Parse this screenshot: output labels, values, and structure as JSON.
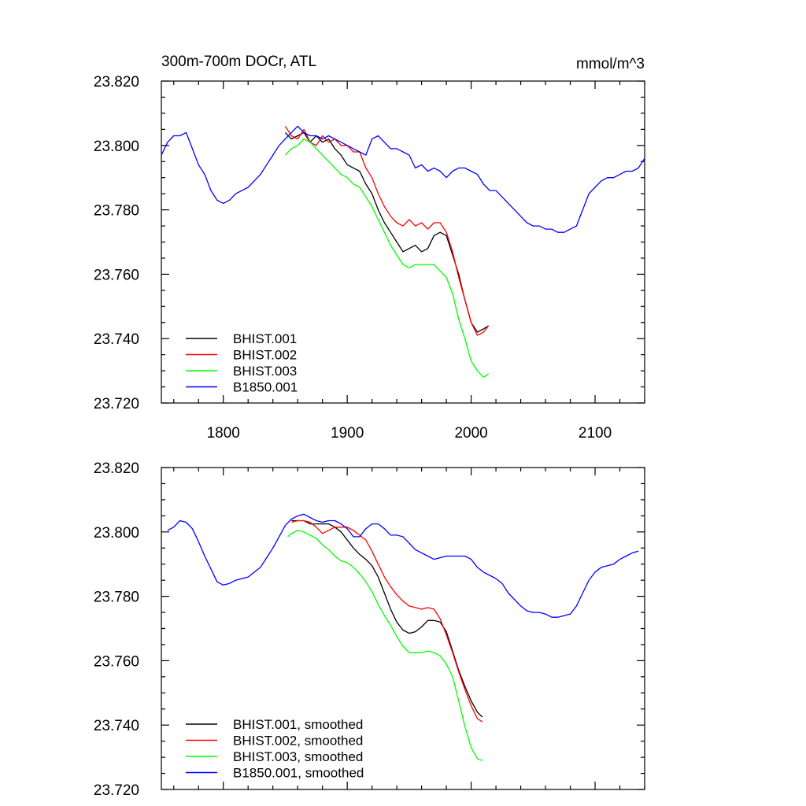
{
  "chart_data": [
    {
      "type": "line",
      "title": "300m-700m DOCr, ATL",
      "units": "mmol/m^3",
      "xlim": [
        1750,
        2140
      ],
      "ylim": [
        23.72,
        23.82
      ],
      "xticks": [
        1800,
        1900,
        2000,
        2100
      ],
      "xtick_labels": [
        "1800",
        "1900",
        "2000",
        "2100"
      ],
      "yticks": [
        23.72,
        23.74,
        23.76,
        23.78,
        23.8,
        23.82
      ],
      "ytick_labels": [
        "23.720",
        "23.740",
        "23.760",
        "23.780",
        "23.800",
        "23.820"
      ],
      "legend_position": "bottom-left",
      "series": [
        {
          "name": "BHIST.001",
          "color": "#000000",
          "x": [
            1850,
            1855,
            1860,
            1865,
            1870,
            1875,
            1880,
            1885,
            1890,
            1895,
            1900,
            1905,
            1910,
            1915,
            1920,
            1925,
            1930,
            1935,
            1940,
            1945,
            1950,
            1955,
            1960,
            1965,
            1970,
            1975,
            1980,
            1985,
            1990,
            1995,
            2000,
            2005,
            2010,
            2014
          ],
          "y": [
            23.804,
            23.802,
            23.803,
            23.804,
            23.801,
            23.803,
            23.801,
            23.802,
            23.799,
            23.797,
            23.794,
            23.793,
            23.792,
            23.788,
            23.785,
            23.78,
            23.776,
            23.773,
            23.77,
            23.767,
            23.768,
            23.769,
            23.767,
            23.768,
            23.772,
            23.773,
            23.772,
            23.766,
            23.76,
            23.752,
            23.745,
            23.742,
            23.743,
            23.744
          ]
        },
        {
          "name": "BHIST.002",
          "color": "#ff0000",
          "x": [
            1850,
            1855,
            1860,
            1865,
            1870,
            1875,
            1880,
            1885,
            1890,
            1895,
            1900,
            1905,
            1910,
            1915,
            1920,
            1925,
            1930,
            1935,
            1940,
            1945,
            1950,
            1955,
            1960,
            1965,
            1970,
            1975,
            1980,
            1985,
            1990,
            1995,
            2000,
            2005,
            2010,
            2014
          ],
          "y": [
            23.806,
            23.803,
            23.802,
            23.805,
            23.801,
            23.8,
            23.803,
            23.801,
            23.802,
            23.8,
            23.8,
            23.798,
            23.798,
            23.793,
            23.79,
            23.785,
            23.781,
            23.778,
            23.776,
            23.775,
            23.777,
            23.775,
            23.776,
            23.774,
            23.776,
            23.776,
            23.773,
            23.767,
            23.759,
            23.752,
            23.745,
            23.741,
            23.742,
            23.744
          ]
        },
        {
          "name": "BHIST.003",
          "color": "#00ff00",
          "x": [
            1850,
            1855,
            1860,
            1865,
            1870,
            1875,
            1880,
            1885,
            1890,
            1895,
            1900,
            1905,
            1910,
            1915,
            1920,
            1925,
            1930,
            1935,
            1940,
            1945,
            1950,
            1955,
            1960,
            1965,
            1970,
            1975,
            1980,
            1985,
            1990,
            1995,
            2000,
            2005,
            2010,
            2014
          ],
          "y": [
            23.797,
            23.799,
            23.8,
            23.802,
            23.801,
            23.799,
            23.797,
            23.795,
            23.793,
            23.791,
            23.79,
            23.788,
            23.787,
            23.784,
            23.781,
            23.777,
            23.773,
            23.769,
            23.766,
            23.763,
            23.762,
            23.763,
            23.763,
            23.763,
            23.763,
            23.761,
            23.759,
            23.754,
            23.746,
            23.74,
            23.733,
            23.73,
            23.728,
            23.729
          ]
        },
        {
          "name": "B1850.001",
          "color": "#0000ff",
          "x": [
            1750,
            1755,
            1760,
            1765,
            1770,
            1775,
            1780,
            1785,
            1790,
            1795,
            1800,
            1805,
            1810,
            1815,
            1820,
            1825,
            1830,
            1835,
            1840,
            1845,
            1850,
            1855,
            1860,
            1865,
            1870,
            1875,
            1880,
            1885,
            1890,
            1895,
            1900,
            1905,
            1910,
            1915,
            1920,
            1925,
            1930,
            1935,
            1940,
            1945,
            1950,
            1955,
            1960,
            1965,
            1970,
            1975,
            1980,
            1985,
            1990,
            1995,
            2000,
            2005,
            2010,
            2015,
            2020,
            2025,
            2030,
            2035,
            2040,
            2045,
            2050,
            2055,
            2060,
            2065,
            2070,
            2075,
            2080,
            2085,
            2090,
            2095,
            2100,
            2105,
            2110,
            2115,
            2120,
            2125,
            2130,
            2135,
            2140
          ],
          "y": [
            23.797,
            23.801,
            23.803,
            23.803,
            23.804,
            23.799,
            23.794,
            23.791,
            23.786,
            23.783,
            23.782,
            23.783,
            23.785,
            23.786,
            23.787,
            23.789,
            23.791,
            23.794,
            23.797,
            23.8,
            23.802,
            23.804,
            23.806,
            23.804,
            23.803,
            23.803,
            23.802,
            23.803,
            23.802,
            23.801,
            23.8,
            23.799,
            23.798,
            23.797,
            23.802,
            23.803,
            23.801,
            23.799,
            23.799,
            23.798,
            23.797,
            23.793,
            23.794,
            23.792,
            23.793,
            23.792,
            23.79,
            23.792,
            23.793,
            23.793,
            23.792,
            23.791,
            23.788,
            23.786,
            23.786,
            23.784,
            23.782,
            23.78,
            23.778,
            23.776,
            23.775,
            23.775,
            23.774,
            23.774,
            23.773,
            23.773,
            23.774,
            23.775,
            23.78,
            23.785,
            23.787,
            23.789,
            23.79,
            23.79,
            23.791,
            23.792,
            23.792,
            23.793,
            23.796
          ]
        }
      ]
    },
    {
      "type": "line",
      "xlim": [
        1750,
        2140
      ],
      "ylim": [
        23.72,
        23.82
      ],
      "xticks": [
        1800,
        1900,
        2000,
        2100
      ],
      "yticks": [
        23.72,
        23.74,
        23.76,
        23.78,
        23.8,
        23.82
      ],
      "ytick_labels": [
        "23.720",
        "23.740",
        "23.760",
        "23.780",
        "23.800",
        "23.820"
      ],
      "legend_position": "bottom-left",
      "series": [
        {
          "name": "BHIST.001, smoothed",
          "color": "#000000",
          "x": [
            1855,
            1860,
            1865,
            1870,
            1875,
            1880,
            1885,
            1890,
            1895,
            1900,
            1905,
            1910,
            1915,
            1920,
            1925,
            1930,
            1935,
            1940,
            1945,
            1950,
            1955,
            1960,
            1965,
            1970,
            1975,
            1980,
            1985,
            1990,
            1995,
            2000,
            2005,
            2009
          ],
          "y": [
            23.8035,
            23.8035,
            23.8035,
            23.8025,
            23.8025,
            23.8025,
            23.8025,
            23.8015,
            23.8,
            23.7975,
            23.795,
            23.793,
            23.7915,
            23.7895,
            23.786,
            23.781,
            23.776,
            23.772,
            23.7695,
            23.7685,
            23.769,
            23.7705,
            23.7725,
            23.7725,
            23.772,
            23.769,
            23.763,
            23.757,
            23.752,
            23.7475,
            23.744,
            23.7425
          ]
        },
        {
          "name": "BHIST.002, smoothed",
          "color": "#ff0000",
          "x": [
            1855,
            1860,
            1865,
            1870,
            1875,
            1880,
            1885,
            1890,
            1895,
            1900,
            1905,
            1910,
            1915,
            1920,
            1925,
            1930,
            1935,
            1940,
            1945,
            1950,
            1955,
            1960,
            1965,
            1970,
            1975,
            1980,
            1985,
            1990,
            1995,
            2000,
            2005,
            2009
          ],
          "y": [
            23.803,
            23.8035,
            23.8035,
            23.803,
            23.8015,
            23.7995,
            23.8005,
            23.8015,
            23.8015,
            23.8015,
            23.8005,
            23.799,
            23.7975,
            23.794,
            23.79,
            23.786,
            23.783,
            23.7805,
            23.7785,
            23.777,
            23.7765,
            23.776,
            23.7765,
            23.776,
            23.773,
            23.768,
            23.7625,
            23.7565,
            23.751,
            23.746,
            23.742,
            23.741
          ]
        },
        {
          "name": "BHIST.003, smoothed",
          "color": "#00ff00",
          "x": [
            1852,
            1855,
            1860,
            1865,
            1870,
            1875,
            1880,
            1885,
            1890,
            1895,
            1900,
            1905,
            1910,
            1915,
            1920,
            1925,
            1930,
            1935,
            1940,
            1945,
            1950,
            1955,
            1960,
            1965,
            1970,
            1975,
            1980,
            1985,
            1990,
            1995,
            2000,
            2005,
            2009
          ],
          "y": [
            23.7985,
            23.7995,
            23.8005,
            23.8,
            23.799,
            23.798,
            23.796,
            23.7945,
            23.7925,
            23.791,
            23.7905,
            23.789,
            23.787,
            23.7845,
            23.7815,
            23.7775,
            23.774,
            23.771,
            23.7675,
            23.7645,
            23.7625,
            23.7625,
            23.7625,
            23.763,
            23.7625,
            23.7615,
            23.759,
            23.755,
            23.7475,
            23.7395,
            23.733,
            23.7295,
            23.729
          ]
        },
        {
          "name": "B1850.001, smoothed",
          "color": "#0000ff",
          "x": [
            1755,
            1760,
            1765,
            1770,
            1775,
            1780,
            1785,
            1790,
            1795,
            1800,
            1805,
            1810,
            1815,
            1820,
            1825,
            1830,
            1835,
            1840,
            1845,
            1850,
            1855,
            1860,
            1865,
            1870,
            1875,
            1880,
            1885,
            1890,
            1895,
            1900,
            1905,
            1910,
            1915,
            1920,
            1925,
            1930,
            1935,
            1940,
            1945,
            1950,
            1955,
            1960,
            1965,
            1970,
            1975,
            1980,
            1985,
            1990,
            1995,
            2000,
            2005,
            2010,
            2015,
            2020,
            2025,
            2030,
            2035,
            2040,
            2045,
            2050,
            2055,
            2060,
            2065,
            2070,
            2075,
            2080,
            2085,
            2090,
            2095,
            2100,
            2105,
            2110,
            2115,
            2120,
            2125,
            2130,
            2135
          ],
          "y": [
            23.8005,
            23.8015,
            23.8035,
            23.803,
            23.801,
            23.797,
            23.7925,
            23.7885,
            23.7845,
            23.7835,
            23.784,
            23.785,
            23.7855,
            23.786,
            23.7875,
            23.789,
            23.792,
            23.795,
            23.7985,
            23.802,
            23.804,
            23.805,
            23.8055,
            23.8045,
            23.8035,
            23.803,
            23.8035,
            23.8035,
            23.8025,
            23.801,
            23.7985,
            23.7985,
            23.801,
            23.8025,
            23.8025,
            23.801,
            23.799,
            23.799,
            23.7985,
            23.7965,
            23.7945,
            23.7935,
            23.7925,
            23.7915,
            23.792,
            23.7925,
            23.7925,
            23.7925,
            23.7925,
            23.7915,
            23.789,
            23.7875,
            23.7865,
            23.7855,
            23.784,
            23.781,
            23.779,
            23.777,
            23.7755,
            23.775,
            23.775,
            23.7745,
            23.7735,
            23.7735,
            23.774,
            23.7745,
            23.777,
            23.781,
            23.785,
            23.7875,
            23.789,
            23.7895,
            23.79,
            23.7915,
            23.7925,
            23.7935,
            23.794
          ]
        }
      ]
    }
  ]
}
